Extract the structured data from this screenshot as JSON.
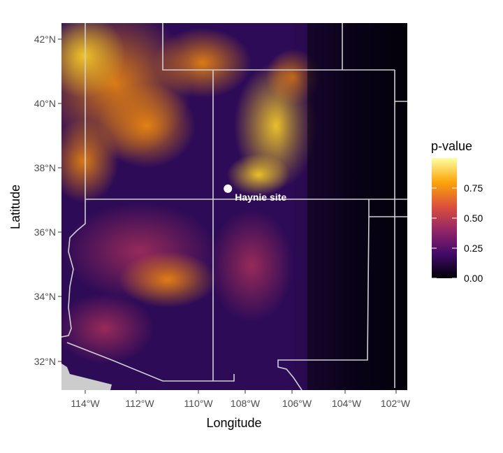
{
  "map": {
    "xlabel": "Longitude",
    "ylabel": "Latitude",
    "x_ticks": [
      "114°W",
      "112°W",
      "110°W",
      "108°W",
      "106°W",
      "104°W",
      "102°W"
    ],
    "y_ticks": [
      "42°N",
      "40°N",
      "38°N",
      "36°N",
      "34°N",
      "32°N"
    ],
    "x_range": [
      -115,
      -101.7
    ],
    "y_range": [
      31.2,
      42.5
    ],
    "site": {
      "name": "Haynie site",
      "lon": -108.6,
      "lat": 37.4
    },
    "legend": {
      "title": "p-value",
      "labels": [
        "0.75",
        "0.50",
        "0.25",
        "0.00"
      ],
      "range": [
        0,
        1
      ],
      "colormap": "inferno",
      "colors": [
        "#000004",
        "#420a68",
        "#932667",
        "#dd513a",
        "#fca50a",
        "#fcffa4"
      ]
    },
    "no_data_color": "#cccccc",
    "border_color": "#d0d0d0"
  }
}
